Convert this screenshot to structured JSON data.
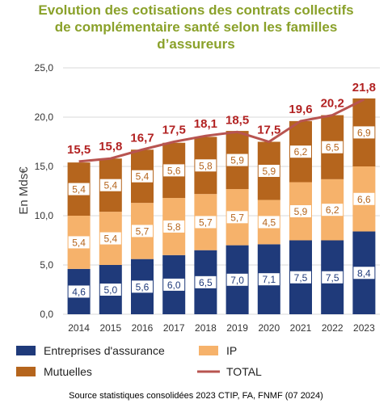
{
  "title": "Evolution des cotisations des contrats collectifs\nde complémentaire santé selon les  familles\nd’assureurs",
  "source": "Source statistiques consolidées 2023 CTIP, FA, FNMF (07 2024)",
  "colors": {
    "entreprises": "#1f3a7a",
    "ip": "#f6b26b",
    "mutuelles": "#b5651d",
    "total": "#b85450",
    "total_label": "#b22222",
    "title": "#8aa12a"
  },
  "chart_data": {
    "type": "bar",
    "stacked": true,
    "categories": [
      "2014",
      "2015",
      "2016",
      "2017",
      "2018",
      "2019",
      "2020",
      "2021",
      "2022",
      "2023"
    ],
    "series": [
      {
        "name": "Entreprises d'assurance",
        "values": [
          4.6,
          5.0,
          5.6,
          6.0,
          6.5,
          7.0,
          7.1,
          7.5,
          7.5,
          8.4
        ],
        "labels": [
          "4,6",
          "5,0",
          "5,6",
          "6,0",
          "6,5",
          "7,0",
          "7,1",
          "7,5",
          "7,5",
          "8,4"
        ]
      },
      {
        "name": "IP",
        "values": [
          5.4,
          5.4,
          5.7,
          5.8,
          5.7,
          5.7,
          4.5,
          5.9,
          6.2,
          6.6
        ],
        "labels": [
          "5,4",
          "5,4",
          "5,7",
          "5,8",
          "5,7",
          "5,7",
          "4,5",
          "5,9",
          "6,2",
          "6,6"
        ]
      },
      {
        "name": "Mutuelles",
        "values": [
          5.4,
          5.4,
          5.4,
          5.6,
          5.8,
          5.9,
          5.9,
          6.2,
          6.5,
          6.9
        ],
        "labels": [
          "5,4",
          "5,4",
          "5,4",
          "5,6",
          "5,8",
          "5,9",
          "5,9",
          "6,2",
          "6,5",
          "6,9"
        ]
      }
    ],
    "line": {
      "name": "TOTAL",
      "values": [
        15.5,
        15.8,
        16.7,
        17.5,
        18.1,
        18.5,
        17.5,
        19.6,
        20.2,
        21.8
      ],
      "labels": [
        "15,5",
        "15,8",
        "16,7",
        "17,5",
        "18,1",
        "18,5",
        "17,5",
        "19,6",
        "20,2",
        "21,8"
      ]
    },
    "ylabel": "En Mds€",
    "ylim": [
      0,
      25
    ],
    "yticks": [
      "0,0",
      "5,0",
      "10,0",
      "15,0",
      "20,0",
      "25,0"
    ],
    "grid": true,
    "legend": "bottom"
  }
}
